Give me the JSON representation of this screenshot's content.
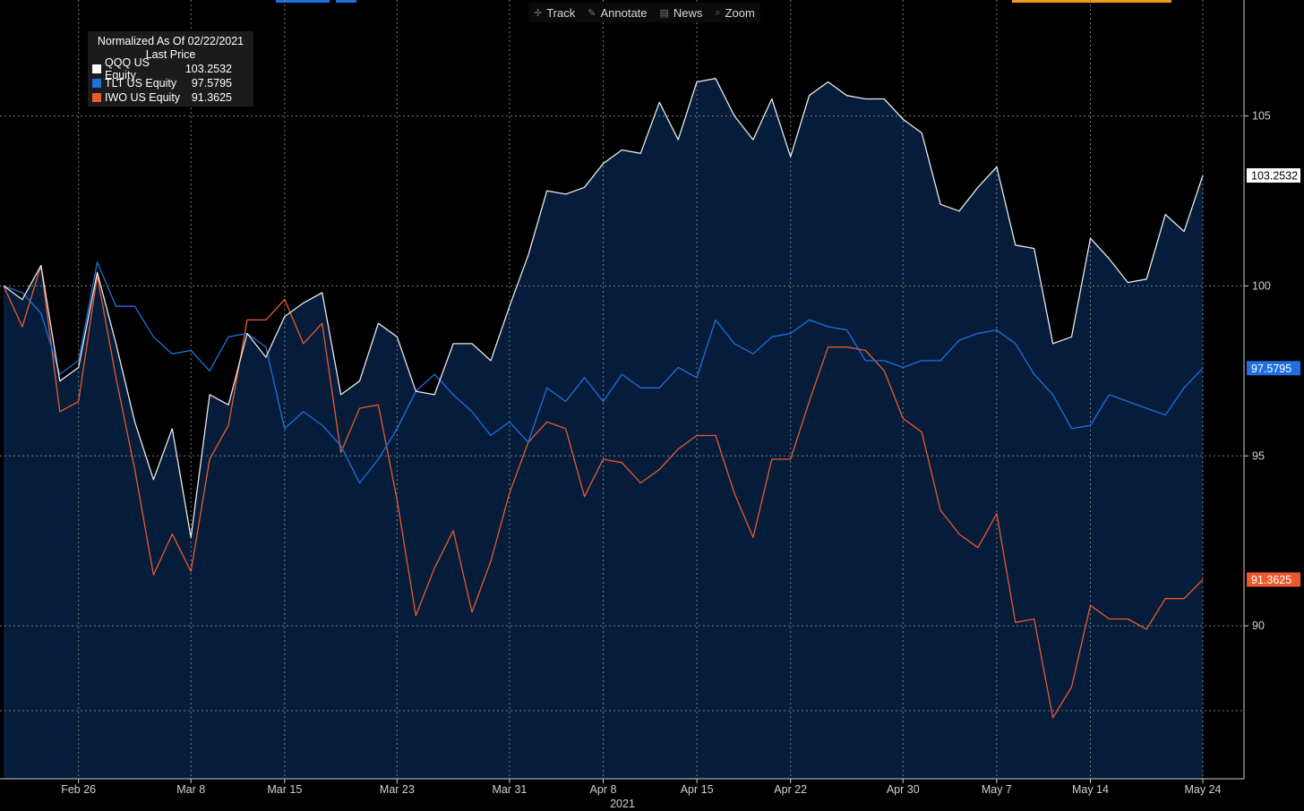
{
  "toolbar": {
    "items": [
      {
        "label": "Track",
        "icon": "crosshair-icon"
      },
      {
        "label": "Annotate",
        "icon": "pencil-icon"
      },
      {
        "label": "News",
        "icon": "news-icon"
      },
      {
        "label": "Zoom",
        "icon": "magnifier-icon"
      }
    ]
  },
  "legend": {
    "title": "Normalized As Of 02/22/2021",
    "subtitle": "Last Price"
  },
  "colors": {
    "background": "#000000",
    "fill": "#051d3b",
    "qqq": "#e8e8e8",
    "tlt": "#1f6fe0",
    "iwo": "#ea5a2c",
    "grid": "#7a7a7a"
  },
  "chart_data": {
    "type": "line",
    "title": "Normalized As Of 02/22/2021",
    "subtitle": "Last Price",
    "x_axis_year": "2021",
    "x_ticks": [
      {
        "index": 4,
        "label": "Feb 26"
      },
      {
        "index": 10,
        "label": "Mar 8"
      },
      {
        "index": 15,
        "label": "Mar 15"
      },
      {
        "index": 21,
        "label": "Mar 23"
      },
      {
        "index": 27,
        "label": "Mar 31"
      },
      {
        "index": 32,
        "label": "Apr 8"
      },
      {
        "index": 37,
        "label": "Apr 15"
      },
      {
        "index": 42,
        "label": "Apr 22"
      },
      {
        "index": 48,
        "label": "Apr 30"
      },
      {
        "index": 53,
        "label": "May 7"
      },
      {
        "index": 58,
        "label": "May 14"
      },
      {
        "index": 64,
        "label": "May 24"
      }
    ],
    "y_ticks": [
      90,
      95,
      100,
      105
    ],
    "ylim": [
      85.5,
      108.2
    ],
    "grid": true,
    "legend_position": "top-left",
    "series": [
      {
        "name": "QQQ US Equity",
        "last": "103.2532",
        "values": [
          100.0,
          99.6,
          100.6,
          97.2,
          97.6,
          100.4,
          98.3,
          96.0,
          94.3,
          95.8,
          92.6,
          96.8,
          96.5,
          98.6,
          97.9,
          99.1,
          99.5,
          99.8,
          96.8,
          97.2,
          98.9,
          98.5,
          96.9,
          96.8,
          98.3,
          98.3,
          97.8,
          99.4,
          100.9,
          102.8,
          102.7,
          102.9,
          103.6,
          104.0,
          103.9,
          105.4,
          104.3,
          106.0,
          106.1,
          105.0,
          104.3,
          105.5,
          103.8,
          105.6,
          106.0,
          105.6,
          105.5,
          105.5,
          104.9,
          104.5,
          102.4,
          102.2,
          102.9,
          103.5,
          101.2,
          101.1,
          98.3,
          98.5,
          101.4,
          100.8,
          100.1,
          100.2,
          102.1,
          101.6,
          103.25
        ]
      },
      {
        "name": "TLT US Equity",
        "last": "97.5795",
        "values": [
          100.0,
          99.8,
          99.2,
          97.4,
          97.8,
          100.7,
          99.4,
          99.4,
          98.5,
          98.0,
          98.1,
          97.5,
          98.5,
          98.6,
          98.2,
          95.8,
          96.3,
          95.9,
          95.3,
          94.2,
          94.9,
          95.8,
          96.9,
          97.4,
          96.8,
          96.3,
          95.6,
          96.0,
          95.4,
          97.0,
          96.6,
          97.3,
          96.6,
          97.4,
          97.0,
          97.0,
          97.6,
          97.3,
          99.0,
          98.3,
          98.0,
          98.5,
          98.6,
          99.0,
          98.8,
          98.7,
          97.8,
          97.8,
          97.6,
          97.8,
          97.8,
          98.4,
          98.6,
          98.7,
          98.3,
          97.4,
          96.8,
          95.8,
          95.9,
          96.8,
          96.6,
          96.4,
          96.2,
          97.0,
          97.58
        ]
      },
      {
        "name": "IWO US Equity",
        "last": "91.3625",
        "values": [
          100.0,
          98.8,
          100.6,
          96.3,
          96.6,
          100.3,
          97.3,
          94.6,
          91.5,
          92.7,
          91.6,
          94.9,
          95.9,
          99.0,
          99.0,
          99.6,
          98.3,
          98.9,
          95.1,
          96.4,
          96.5,
          93.7,
          90.3,
          91.7,
          92.8,
          90.4,
          91.9,
          93.9,
          95.4,
          96.0,
          95.8,
          93.8,
          94.9,
          94.8,
          94.2,
          94.6,
          95.2,
          95.6,
          95.6,
          93.9,
          92.6,
          94.9,
          94.9,
          96.6,
          98.2,
          98.2,
          98.1,
          97.5,
          96.1,
          95.7,
          93.4,
          92.7,
          92.3,
          93.3,
          90.1,
          90.2,
          87.3,
          88.2,
          90.6,
          90.2,
          90.2,
          89.9,
          90.8,
          90.8,
          91.36
        ]
      }
    ]
  }
}
